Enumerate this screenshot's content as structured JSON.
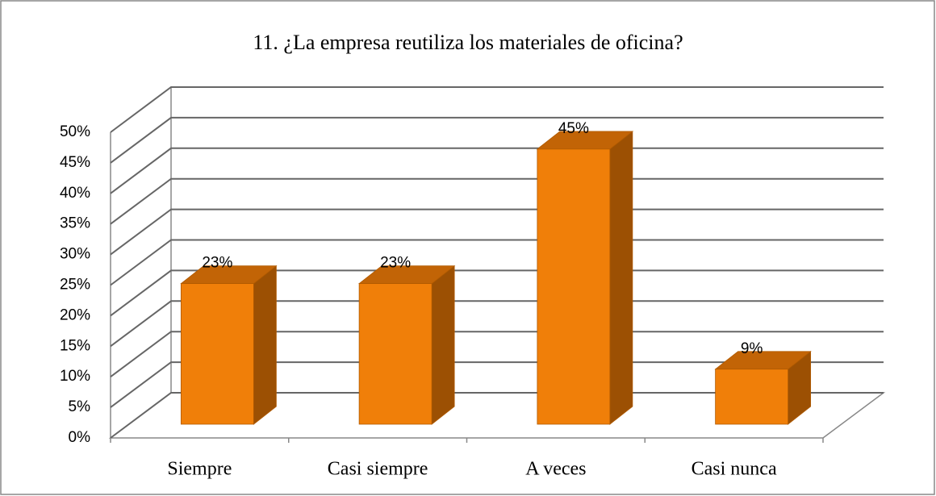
{
  "chart_data": {
    "type": "bar3d",
    "title": "11. ¿La empresa reutiliza los materiales de oficina?",
    "categories": [
      "Siempre",
      "Casi siempre",
      "A veces",
      "Casi nunca"
    ],
    "values": [
      23,
      23,
      45,
      9
    ],
    "value_labels": [
      "23%",
      "23%",
      "45%",
      "9%"
    ],
    "color": "#f07f09",
    "ylim": [
      0,
      50
    ],
    "yticks": [
      {
        "value": 0,
        "label": "0%"
      },
      {
        "value": 5,
        "label": "5%"
      },
      {
        "value": 10,
        "label": "10%"
      },
      {
        "value": 15,
        "label": "15%"
      },
      {
        "value": 20,
        "label": "20%"
      },
      {
        "value": 25,
        "label": "25%"
      },
      {
        "value": 30,
        "label": "30%"
      },
      {
        "value": 35,
        "label": "35%"
      },
      {
        "value": 40,
        "label": "40%"
      },
      {
        "value": 45,
        "label": "45%"
      },
      {
        "value": 50,
        "label": "50%"
      }
    ],
    "grid": true
  }
}
